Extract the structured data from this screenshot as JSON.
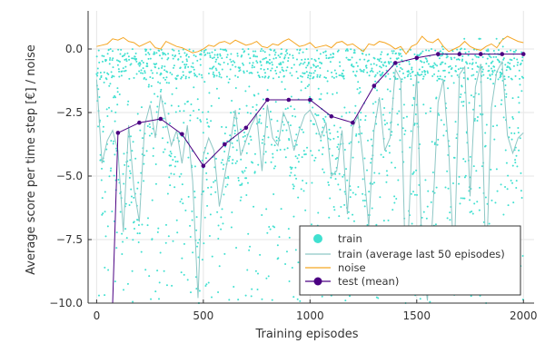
{
  "chart_data": {
    "type": "scatter",
    "title": "",
    "xlabel": "Training episodes",
    "ylabel": "Average score per time step [€] / noise",
    "xlim": [
      -40,
      2050
    ],
    "ylim": [
      -10,
      1.5
    ],
    "x_ticks": [
      0,
      500,
      1000,
      1500,
      2000
    ],
    "x_tick_labels": [
      "0",
      "500",
      "1000",
      "1500",
      "2000"
    ],
    "y_ticks": [
      -10,
      -7.5,
      -5,
      -2.5,
      0
    ],
    "y_tick_labels": [
      "−10.0",
      "−7.5",
      "−5.0",
      "−2.5",
      "0.0"
    ],
    "grid": true,
    "legend_position": "bottom-right",
    "legend": [
      "train",
      "train (average last 50 episodes)",
      "noise",
      "test (mean)"
    ],
    "colors": {
      "train": "#40e0d0",
      "train_avg": "#8ec7c5",
      "noise": "#f5a623",
      "test": "#4b0082"
    },
    "train_scatter_note": "approximately 2000 points scattered mostly between -10 and 0, denser near 0",
    "train_avg_series": {
      "x": [
        0,
        25,
        50,
        75,
        100,
        125,
        150,
        175,
        200,
        225,
        250,
        275,
        300,
        325,
        350,
        375,
        400,
        425,
        450,
        475,
        500,
        525,
        550,
        575,
        600,
        625,
        650,
        675,
        700,
        725,
        750,
        775,
        800,
        825,
        850,
        875,
        900,
        925,
        950,
        975,
        1000,
        1025,
        1050,
        1075,
        1100,
        1125,
        1150,
        1175,
        1200,
        1225,
        1250,
        1275,
        1300,
        1325,
        1350,
        1375,
        1400,
        1425,
        1450,
        1475,
        1500,
        1525,
        1550,
        1575,
        1600,
        1625,
        1650,
        1675,
        1700,
        1725,
        1750,
        1775,
        1800,
        1825,
        1850,
        1875,
        1900,
        1925,
        1950,
        1975,
        2000
      ],
      "y": [
        -1.2,
        -4.5,
        -3.6,
        -3.2,
        -4.0,
        -7.2,
        -3.0,
        -5.5,
        -6.8,
        -3.0,
        -2.2,
        -3.5,
        -1.8,
        -2.8,
        -3.8,
        -3.2,
        -4.5,
        -3.0,
        -5.2,
        -9.8,
        -4.2,
        -3.5,
        -4.0,
        -6.2,
        -5.0,
        -3.8,
        -2.4,
        -4.2,
        -3.6,
        -3.0,
        -2.6,
        -4.8,
        -2.2,
        -3.5,
        -3.8,
        -2.5,
        -3.0,
        -4.0,
        -3.2,
        -2.6,
        -2.4,
        -2.8,
        -3.5,
        -2.9,
        -5.0,
        -4.8,
        -3.2,
        -6.5,
        -3.1,
        -2.6,
        -4.5,
        -7.0,
        -3.2,
        -1.9,
        -4.0,
        -3.5,
        -0.8,
        -1.2,
        -9.6,
        -4.2,
        -1.0,
        -8.2,
        -9.9,
        -6.5,
        -2.1,
        -1.2,
        -4.0,
        -8.5,
        -1.0,
        -0.7,
        -5.8,
        -1.5,
        -0.6,
        -8.8,
        -2.3,
        -0.9,
        -0.5,
        -3.4,
        -4.1,
        -3.5,
        -3.3
      ]
    },
    "noise_series": {
      "x": [
        0,
        25,
        50,
        75,
        100,
        125,
        150,
        175,
        200,
        225,
        250,
        275,
        300,
        325,
        350,
        375,
        400,
        425,
        450,
        475,
        500,
        525,
        550,
        575,
        600,
        625,
        650,
        675,
        700,
        725,
        750,
        775,
        800,
        825,
        850,
        875,
        900,
        925,
        950,
        975,
        1000,
        1025,
        1050,
        1075,
        1100,
        1125,
        1150,
        1175,
        1200,
        1225,
        1250,
        1275,
        1300,
        1325,
        1350,
        1375,
        1400,
        1425,
        1450,
        1475,
        1500,
        1525,
        1550,
        1575,
        1600,
        1625,
        1650,
        1675,
        1700,
        1725,
        1750,
        1775,
        1800,
        1825,
        1850,
        1875,
        1900,
        1925,
        1950,
        1975,
        2000
      ],
      "y": [
        0.1,
        0.15,
        0.2,
        0.4,
        0.35,
        0.45,
        0.3,
        0.25,
        0.1,
        0.2,
        0.3,
        0.05,
        0.0,
        0.3,
        0.2,
        0.1,
        0.05,
        -0.05,
        -0.15,
        -0.1,
        0.0,
        0.15,
        0.1,
        0.25,
        0.3,
        0.2,
        0.35,
        0.25,
        0.15,
        0.2,
        0.3,
        0.1,
        0.05,
        0.2,
        0.15,
        0.3,
        0.4,
        0.25,
        0.1,
        0.15,
        0.25,
        0.05,
        0.1,
        0.15,
        0.05,
        0.25,
        0.3,
        0.15,
        0.2,
        0.05,
        -0.1,
        0.2,
        0.15,
        0.3,
        0.25,
        0.15,
        0.0,
        0.1,
        -0.2,
        0.1,
        0.2,
        0.5,
        0.3,
        0.25,
        0.4,
        0.1,
        -0.1,
        0.0,
        0.1,
        0.3,
        0.1,
        0.0,
        -0.05,
        0.1,
        0.2,
        0.05,
        0.35,
        0.5,
        0.4,
        0.3,
        0.25
      ]
    },
    "test_mean_series": {
      "x": [
        75,
        100,
        200,
        300,
        400,
        500,
        600,
        700,
        800,
        900,
        1000,
        1100,
        1200,
        1300,
        1400,
        1500,
        1600,
        1700,
        1800,
        1900,
        2000
      ],
      "y": [
        -10.5,
        -3.3,
        -2.9,
        -2.75,
        -3.35,
        -4.6,
        -3.75,
        -3.1,
        -2.0,
        -2.0,
        -2.0,
        -2.65,
        -2.9,
        -1.45,
        -0.55,
        -0.35,
        -0.2,
        -0.2,
        -0.2,
        -0.2,
        -0.2
      ]
    }
  }
}
